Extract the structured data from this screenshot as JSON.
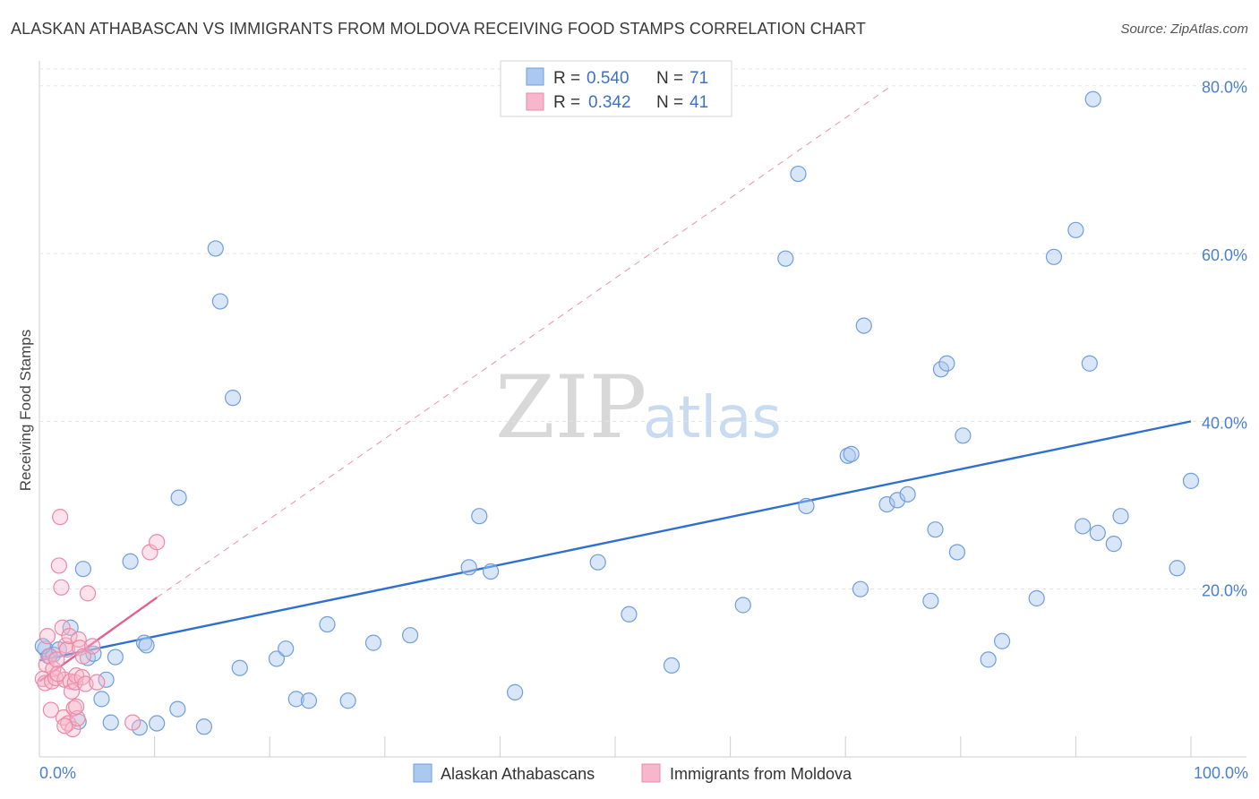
{
  "title": "ALASKAN ATHABASCAN VS IMMIGRANTS FROM MOLDOVA RECEIVING FOOD STAMPS CORRELATION CHART",
  "source": "Source: ZipAtlas.com",
  "watermark": {
    "part1": "ZIP",
    "part2": "atlas"
  },
  "colors": {
    "blue_fill": "#aac8f0",
    "blue_stroke": "#6f9fdc",
    "blue_line": "#2f6fd0",
    "pink_fill": "#f7b6cb",
    "pink_stroke": "#ea8aa8",
    "pink_line": "#e0608f",
    "grid": "#e3e3e3",
    "tick_text": "#4a7fd0"
  },
  "legend": {
    "rows": [
      {
        "r_label": "R = ",
        "r_value": "0.540",
        "n_label": "N = ",
        "n_value": "71"
      },
      {
        "r_label": "R = ",
        "r_value": "0.342",
        "n_label": "N = ",
        "n_value": "41"
      }
    ]
  },
  "chart_data": {
    "type": "scatter",
    "title": "ALASKAN ATHABASCAN VS IMMIGRANTS FROM MOLDOVA RECEIVING FOOD STAMPS CORRELATION CHART",
    "xlabel": "",
    "ylabel": "Receiving Food Stamps",
    "xlim": [
      0,
      100
    ],
    "ylim": [
      0,
      82
    ],
    "x_tick_labels": {
      "left": "0.0%",
      "right": "100.0%"
    },
    "y_ticks": [
      {
        "value": 20,
        "label": "20.0%"
      },
      {
        "value": 40,
        "label": "40.0%"
      },
      {
        "value": 60,
        "label": "60.0%"
      },
      {
        "value": 80,
        "label": "80.0%"
      }
    ],
    "grid": true,
    "series": [
      {
        "name": "Alaskan Athabascans",
        "color": "blue",
        "R": 0.54,
        "N": 71,
        "trend": {
          "x0": 0,
          "y0": 11.5,
          "x1": 100,
          "y1": 40.0,
          "style": "solid"
        },
        "points": [
          [
            0.5,
            12.9
          ],
          [
            0.8,
            12.0
          ],
          [
            1.2,
            12.2
          ],
          [
            1.7,
            12.8
          ],
          [
            2.7,
            15.4
          ],
          [
            3.4,
            4.2
          ],
          [
            3.8,
            22.4
          ],
          [
            4.2,
            11.8
          ],
          [
            4.7,
            12.3
          ],
          [
            5.4,
            6.9
          ],
          [
            5.8,
            9.2
          ],
          [
            6.2,
            4.1
          ],
          [
            6.6,
            11.9
          ],
          [
            7.9,
            23.3
          ],
          [
            8.7,
            3.5
          ],
          [
            9.1,
            13.6
          ],
          [
            9.3,
            13.3
          ],
          [
            10.2,
            4.0
          ],
          [
            12.0,
            5.7
          ],
          [
            12.1,
            30.9
          ],
          [
            14.3,
            3.6
          ],
          [
            15.3,
            60.6
          ],
          [
            15.7,
            54.3
          ],
          [
            16.8,
            42.8
          ],
          [
            17.4,
            10.6
          ],
          [
            20.6,
            11.7
          ],
          [
            21.4,
            12.9
          ],
          [
            22.3,
            6.9
          ],
          [
            23.4,
            6.7
          ],
          [
            25.0,
            15.8
          ],
          [
            26.8,
            6.7
          ],
          [
            29.0,
            13.6
          ],
          [
            32.2,
            14.5
          ],
          [
            37.3,
            22.6
          ],
          [
            38.2,
            28.7
          ],
          [
            39.2,
            22.1
          ],
          [
            41.3,
            7.7
          ],
          [
            48.5,
            23.2
          ],
          [
            51.2,
            17.0
          ],
          [
            54.9,
            10.9
          ],
          [
            61.1,
            18.1
          ],
          [
            64.8,
            59.4
          ],
          [
            65.9,
            69.5
          ],
          [
            66.6,
            29.9
          ],
          [
            70.2,
            35.9
          ],
          [
            70.5,
            36.1
          ],
          [
            71.3,
            20.0
          ],
          [
            71.6,
            51.4
          ],
          [
            73.6,
            30.1
          ],
          [
            74.5,
            30.6
          ],
          [
            75.4,
            31.3
          ],
          [
            77.4,
            18.6
          ],
          [
            77.8,
            27.1
          ],
          [
            78.3,
            46.2
          ],
          [
            78.8,
            46.9
          ],
          [
            79.7,
            24.4
          ],
          [
            80.2,
            38.3
          ],
          [
            82.4,
            11.6
          ],
          [
            83.6,
            13.8
          ],
          [
            86.6,
            18.9
          ],
          [
            88.1,
            59.6
          ],
          [
            90.0,
            62.8
          ],
          [
            90.6,
            27.5
          ],
          [
            91.2,
            46.9
          ],
          [
            91.5,
            78.4
          ],
          [
            91.9,
            26.7
          ],
          [
            93.3,
            25.4
          ],
          [
            93.9,
            28.7
          ],
          [
            98.8,
            22.5
          ],
          [
            100.0,
            32.9
          ],
          [
            0.3,
            13.2
          ]
        ]
      },
      {
        "name": "Immigrants from Moldova",
        "color": "pink",
        "R": 0.342,
        "N": 41,
        "trend": {
          "x0": 0,
          "y0": 9.0,
          "x1": 10.2,
          "y1": 19.0,
          "style": "solid"
        },
        "trend_extension": {
          "x0": 10.2,
          "y0": 19.0,
          "x1": 74.0,
          "y1": 80.0,
          "style": "dashed"
        },
        "points": [
          [
            0.3,
            9.3
          ],
          [
            0.5,
            8.8
          ],
          [
            0.6,
            11.0
          ],
          [
            0.7,
            14.4
          ],
          [
            0.9,
            12.0
          ],
          [
            1.1,
            9.0
          ],
          [
            1.2,
            10.5
          ],
          [
            1.4,
            9.4
          ],
          [
            1.5,
            11.6
          ],
          [
            1.7,
            22.8
          ],
          [
            1.8,
            28.6
          ],
          [
            1.9,
            20.2
          ],
          [
            2.0,
            15.4
          ],
          [
            2.1,
            4.7
          ],
          [
            2.2,
            9.2
          ],
          [
            2.3,
            13.3
          ],
          [
            2.4,
            12.8
          ],
          [
            2.5,
            4.0
          ],
          [
            2.6,
            14.4
          ],
          [
            2.7,
            9.0
          ],
          [
            2.8,
            7.8
          ],
          [
            2.9,
            3.3
          ],
          [
            3.0,
            5.8
          ],
          [
            3.1,
            8.9
          ],
          [
            3.2,
            9.7
          ],
          [
            3.3,
            4.6
          ],
          [
            3.4,
            14.0
          ],
          [
            3.5,
            13.0
          ],
          [
            3.7,
            9.5
          ],
          [
            3.8,
            12.0
          ],
          [
            4.0,
            8.7
          ],
          [
            4.2,
            19.5
          ],
          [
            4.6,
            13.2
          ],
          [
            5.0,
            8.9
          ],
          [
            8.1,
            4.1
          ],
          [
            9.6,
            24.4
          ],
          [
            10.2,
            25.6
          ],
          [
            1.0,
            5.6
          ],
          [
            1.6,
            9.9
          ],
          [
            2.2,
            3.7
          ],
          [
            3.2,
            6.0
          ]
        ]
      }
    ]
  }
}
